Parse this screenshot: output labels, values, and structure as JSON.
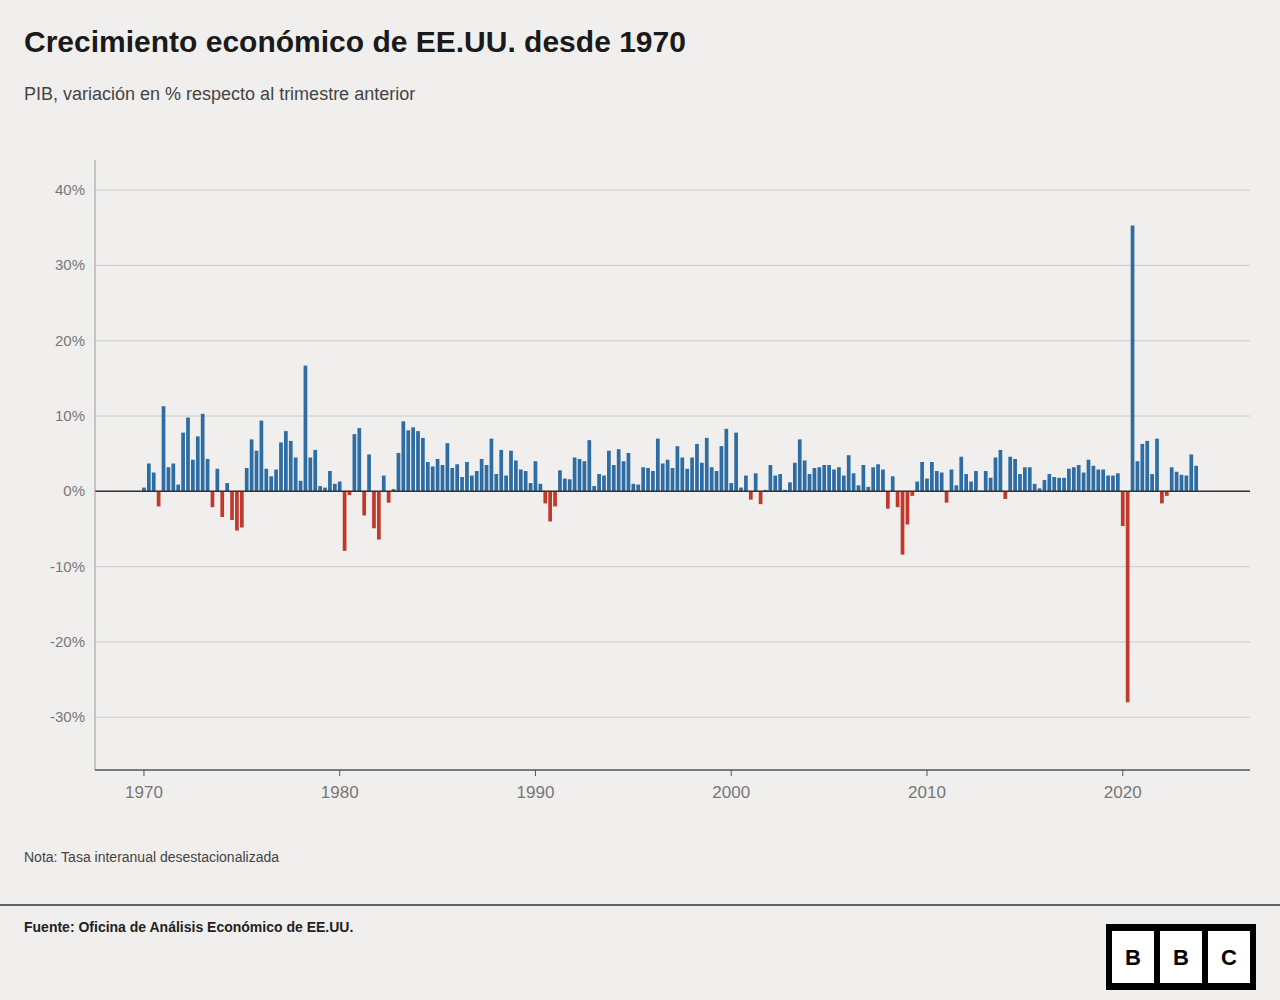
{
  "chart_data": {
    "type": "bar",
    "title": "Crecimiento económico de EE.UU. desde 1970",
    "subtitle": "PIB, variación en % respecto al trimestre anterior",
    "note": "Nota: Tasa interanual desestacionalizada",
    "source": "Fuente: Oficina de Análisis Económico de EE.UU.",
    "annotations": [
      "B",
      "B",
      "C"
    ],
    "grid": true,
    "ylim": [
      -37,
      44
    ],
    "yticks": [
      {
        "value": 40,
        "label": "40%"
      },
      {
        "value": 30,
        "label": "30%"
      },
      {
        "value": 20,
        "label": "20%"
      },
      {
        "value": 10,
        "label": "10%"
      },
      {
        "value": 0,
        "label": "0%"
      },
      {
        "value": -10,
        "label": "-10%"
      },
      {
        "value": -20,
        "label": "-20%"
      },
      {
        "value": -30,
        "label": "-30%"
      }
    ],
    "xlim": [
      1967.5,
      2026.5
    ],
    "xticks": [
      1970,
      1980,
      1990,
      2000,
      2010,
      2020
    ],
    "x": [
      1970.0,
      1970.25,
      1970.5,
      1970.75,
      1971.0,
      1971.25,
      1971.5,
      1971.75,
      1972.0,
      1972.25,
      1972.5,
      1972.75,
      1973.0,
      1973.25,
      1973.5,
      1973.75,
      1974.0,
      1974.25,
      1974.5,
      1974.75,
      1975.0,
      1975.25,
      1975.5,
      1975.75,
      1976.0,
      1976.25,
      1976.5,
      1976.75,
      1977.0,
      1977.25,
      1977.5,
      1977.75,
      1978.0,
      1978.25,
      1978.5,
      1978.75,
      1979.0,
      1979.25,
      1979.5,
      1979.75,
      1980.0,
      1980.25,
      1980.5,
      1980.75,
      1981.0,
      1981.25,
      1981.5,
      1981.75,
      1982.0,
      1982.25,
      1982.5,
      1982.75,
      1983.0,
      1983.25,
      1983.5,
      1983.75,
      1984.0,
      1984.25,
      1984.5,
      1984.75,
      1985.0,
      1985.25,
      1985.5,
      1985.75,
      1986.0,
      1986.25,
      1986.5,
      1986.75,
      1987.0,
      1987.25,
      1987.5,
      1987.75,
      1988.0,
      1988.25,
      1988.5,
      1988.75,
      1989.0,
      1989.25,
      1989.5,
      1989.75,
      1990.0,
      1990.25,
      1990.5,
      1990.75,
      1991.0,
      1991.25,
      1991.5,
      1991.75,
      1992.0,
      1992.25,
      1992.5,
      1992.75,
      1993.0,
      1993.25,
      1993.5,
      1993.75,
      1994.0,
      1994.25,
      1994.5,
      1994.75,
      1995.0,
      1995.25,
      1995.5,
      1995.75,
      1996.0,
      1996.25,
      1996.5,
      1996.75,
      1997.0,
      1997.25,
      1997.5,
      1997.75,
      1998.0,
      1998.25,
      1998.5,
      1998.75,
      1999.0,
      1999.25,
      1999.5,
      1999.75,
      2000.0,
      2000.25,
      2000.5,
      2000.75,
      2001.0,
      2001.25,
      2001.5,
      2001.75,
      2002.0,
      2002.25,
      2002.5,
      2002.75,
      2003.0,
      2003.25,
      2003.5,
      2003.75,
      2004.0,
      2004.25,
      2004.5,
      2004.75,
      2005.0,
      2005.25,
      2005.5,
      2005.75,
      2006.0,
      2006.25,
      2006.5,
      2006.75,
      2007.0,
      2007.25,
      2007.5,
      2007.75,
      2008.0,
      2008.25,
      2008.5,
      2008.75,
      2009.0,
      2009.25,
      2009.5,
      2009.75,
      2010.0,
      2010.25,
      2010.5,
      2010.75,
      2011.0,
      2011.25,
      2011.5,
      2011.75,
      2012.0,
      2012.25,
      2012.5,
      2012.75,
      2013.0,
      2013.25,
      2013.5,
      2013.75,
      2014.0,
      2014.25,
      2014.5,
      2014.75,
      2015.0,
      2015.25,
      2015.5,
      2015.75,
      2016.0,
      2016.25,
      2016.5,
      2016.75,
      2017.0,
      2017.25,
      2017.5,
      2017.75,
      2018.0,
      2018.25,
      2018.5,
      2018.75,
      2019.0,
      2019.25,
      2019.5,
      2019.75,
      2020.0,
      2020.25,
      2020.5,
      2020.75,
      2021.0,
      2021.25,
      2021.5,
      2021.75,
      2022.0,
      2022.25,
      2022.5,
      2022.75,
      2023.0,
      2023.25,
      2023.5,
      2023.75
    ],
    "values": [
      0.5,
      3.7,
      2.5,
      -2.0,
      11.3,
      3.2,
      3.7,
      0.9,
      7.8,
      9.8,
      4.2,
      7.3,
      10.3,
      4.3,
      -2.1,
      3.0,
      -3.4,
      1.1,
      -3.8,
      -5.2,
      -4.8,
      3.1,
      6.9,
      5.4,
      9.4,
      3.0,
      2.0,
      2.9,
      6.5,
      8.0,
      6.7,
      4.5,
      1.4,
      16.7,
      4.5,
      5.5,
      0.7,
      0.5,
      2.7,
      1.0,
      1.3,
      -7.9,
      -0.5,
      7.6,
      8.4,
      -3.2,
      4.9,
      -4.9,
      -6.4,
      2.1,
      -1.5,
      0.3,
      5.1,
      9.3,
      8.1,
      8.5,
      8.0,
      7.1,
      3.9,
      3.3,
      4.3,
      3.5,
      6.4,
      3.1,
      3.6,
      1.9,
      3.9,
      2.1,
      2.7,
      4.3,
      3.5,
      7.0,
      2.3,
      5.5,
      2.1,
      5.4,
      4.1,
      2.9,
      2.7,
      1.1,
      4.0,
      1.0,
      -1.6,
      -4.0,
      -2.0,
      2.8,
      1.7,
      1.6,
      4.5,
      4.3,
      4.0,
      6.8,
      0.7,
      2.3,
      2.1,
      5.4,
      3.5,
      5.6,
      4.0,
      5.1,
      1.0,
      0.9,
      3.2,
      3.1,
      2.7,
      7.0,
      3.7,
      4.2,
      3.1,
      6.0,
      4.5,
      3.0,
      4.5,
      6.3,
      3.8,
      7.1,
      3.2,
      2.7,
      6.0,
      8.3,
      1.1,
      7.8,
      0.5,
      2.1,
      -1.1,
      2.4,
      -1.7,
      0.2,
      3.5,
      2.1,
      2.3,
      0.2,
      1.2,
      3.8,
      6.9,
      4.1,
      2.3,
      3.1,
      3.2,
      3.5,
      3.5,
      2.9,
      3.2,
      2.1,
      4.8,
      2.4,
      0.8,
      3.5,
      0.6,
      3.2,
      3.6,
      2.9,
      -2.3,
      2.0,
      -2.1,
      -8.4,
      -4.4,
      -0.6,
      1.3,
      3.9,
      1.7,
      3.9,
      2.7,
      2.5,
      -1.5,
      2.9,
      0.8,
      4.6,
      2.3,
      1.3,
      2.7,
      0.1,
      2.7,
      1.8,
      4.5,
      5.5,
      -1.0,
      4.6,
      4.3,
      2.3,
      3.2,
      3.2,
      1.0,
      0.4,
      1.5,
      2.3,
      1.9,
      1.8,
      1.8,
      3.0,
      3.2,
      3.5,
      2.5,
      4.2,
      3.4,
      2.9,
      2.9,
      2.1,
      2.1,
      2.4,
      -4.6,
      -28.0,
      35.3,
      4.0,
      6.3,
      6.7,
      2.3,
      7.0,
      -1.6,
      -0.6,
      3.2,
      2.6,
      2.2,
      2.1,
      4.9,
      3.4
    ],
    "colors": [
      "#2e6da4",
      "#2e6da4",
      "#2e6da4",
      "#c0392b",
      "#2e6da4",
      "#2e6da4",
      "#2e6da4",
      "#2e6da4",
      "#2e6da4",
      "#2e6da4",
      "#2e6da4",
      "#2e6da4",
      "#2e6da4",
      "#2e6da4",
      "#c0392b",
      "#2e6da4",
      "#c0392b",
      "#2e6da4",
      "#c0392b",
      "#c0392b",
      "#c0392b",
      "#2e6da4",
      "#2e6da4",
      "#2e6da4",
      "#2e6da4",
      "#2e6da4",
      "#2e6da4",
      "#2e6da4",
      "#2e6da4",
      "#2e6da4",
      "#2e6da4",
      "#2e6da4",
      "#2e6da4",
      "#2e6da4",
      "#2e6da4",
      "#2e6da4",
      "#2e6da4",
      "#2e6da4",
      "#2e6da4",
      "#2e6da4",
      "#2e6da4",
      "#c0392b",
      "#c0392b",
      "#2e6da4",
      "#2e6da4",
      "#c0392b",
      "#2e6da4",
      "#c0392b",
      "#c0392b",
      "#2e6da4",
      "#c0392b",
      "#2e6da4",
      "#2e6da4",
      "#2e6da4",
      "#2e6da4",
      "#2e6da4",
      "#2e6da4",
      "#2e6da4",
      "#2e6da4",
      "#2e6da4",
      "#2e6da4",
      "#2e6da4",
      "#2e6da4",
      "#2e6da4",
      "#2e6da4",
      "#2e6da4",
      "#2e6da4",
      "#2e6da4",
      "#2e6da4",
      "#2e6da4",
      "#2e6da4",
      "#2e6da4",
      "#2e6da4",
      "#2e6da4",
      "#2e6da4",
      "#2e6da4",
      "#2e6da4",
      "#2e6da4",
      "#2e6da4",
      "#2e6da4",
      "#2e6da4",
      "#2e6da4",
      "#c0392b",
      "#c0392b",
      "#c0392b",
      "#2e6da4",
      "#2e6da4",
      "#2e6da4",
      "#2e6da4",
      "#2e6da4",
      "#2e6da4",
      "#2e6da4",
      "#2e6da4",
      "#2e6da4",
      "#2e6da4",
      "#2e6da4",
      "#2e6da4",
      "#2e6da4",
      "#2e6da4",
      "#2e6da4",
      "#2e6da4",
      "#2e6da4",
      "#2e6da4",
      "#2e6da4",
      "#2e6da4",
      "#2e6da4",
      "#2e6da4",
      "#2e6da4",
      "#2e6da4",
      "#2e6da4",
      "#2e6da4",
      "#2e6da4",
      "#2e6da4",
      "#2e6da4",
      "#2e6da4",
      "#2e6da4",
      "#2e6da4",
      "#2e6da4",
      "#2e6da4",
      "#2e6da4",
      "#2e6da4",
      "#2e6da4",
      "#2e6da4",
      "#2e6da4",
      "#c0392b",
      "#2e6da4",
      "#c0392b",
      "#2e6da4",
      "#2e6da4",
      "#2e6da4",
      "#2e6da4",
      "#2e6da4",
      "#2e6da4",
      "#2e6da4",
      "#2e6da4",
      "#2e6da4",
      "#2e6da4",
      "#2e6da4",
      "#2e6da4",
      "#2e6da4",
      "#2e6da4",
      "#2e6da4",
      "#2e6da4",
      "#2e6da4",
      "#2e6da4",
      "#2e6da4",
      "#2e6da4",
      "#2e6da4",
      "#2e6da4",
      "#2e6da4",
      "#2e6da4",
      "#2e6da4",
      "#c0392b",
      "#2e6da4",
      "#c0392b",
      "#c0392b",
      "#c0392b",
      "#c0392b",
      "#2e6da4",
      "#2e6da4",
      "#2e6da4",
      "#2e6da4",
      "#2e6da4",
      "#2e6da4",
      "#c0392b",
      "#2e6da4",
      "#2e6da4",
      "#2e6da4",
      "#2e6da4",
      "#2e6da4",
      "#2e6da4",
      "#2e6da4",
      "#2e6da4",
      "#2e6da4",
      "#2e6da4",
      "#2e6da4",
      "#c0392b",
      "#2e6da4",
      "#2e6da4",
      "#2e6da4",
      "#2e6da4",
      "#2e6da4",
      "#2e6da4",
      "#2e6da4",
      "#2e6da4",
      "#2e6da4",
      "#2e6da4",
      "#2e6da4",
      "#2e6da4",
      "#2e6da4",
      "#2e6da4",
      "#2e6da4",
      "#2e6da4",
      "#2e6da4",
      "#2e6da4",
      "#2e6da4",
      "#2e6da4",
      "#2e6da4",
      "#2e6da4",
      "#2e6da4",
      "#c0392b",
      "#c0392b",
      "#2e6da4",
      "#2e6da4",
      "#2e6da4",
      "#2e6da4",
      "#2e6da4",
      "#2e6da4",
      "#c0392b",
      "#c0392b",
      "#2e6da4",
      "#2e6da4",
      "#2e6da4",
      "#2e6da4",
      "#2e6da4",
      "#2e6da4"
    ]
  }
}
